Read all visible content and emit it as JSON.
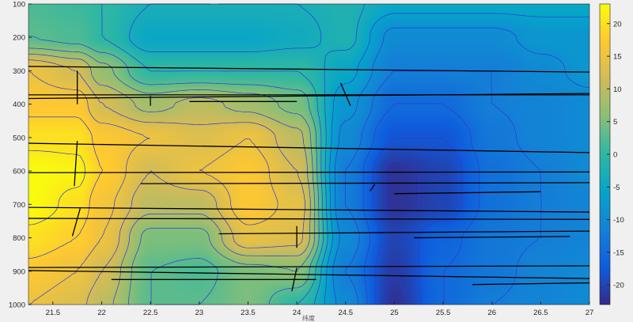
{
  "chart_data": {
    "type": "heatmap",
    "subtype": "filled contour with contour lines and overlaid line segments",
    "title": "",
    "xlabel": "纬度",
    "ylabel": "",
    "xlim": [
      21.25,
      27
    ],
    "ylim": [
      100,
      1000
    ],
    "y_reversed": true,
    "x_ticks": [
      21.5,
      22,
      22.5,
      23,
      23.5,
      24,
      24.5,
      25,
      25.5,
      26,
      26.5,
      27
    ],
    "y_ticks": [
      100,
      200,
      300,
      400,
      500,
      600,
      700,
      800,
      900,
      1000
    ],
    "colormap": "parula",
    "clim": [
      -23,
      23
    ],
    "colorbar": {
      "position": "right",
      "ticks": [
        -20,
        -15,
        -10,
        -5,
        0,
        5,
        10,
        15,
        20
      ]
    },
    "contour_color": "#2b3bd6",
    "contour_levels_step": 3,
    "grid_x": [
      21.25,
      21.75,
      22,
      22.5,
      23,
      23.5,
      24,
      24.5,
      25,
      25.5,
      26,
      26.5,
      27
    ],
    "grid_y": [
      100,
      200,
      300,
      400,
      500,
      600,
      700,
      800,
      900,
      1000
    ],
    "values": [
      [
        2,
        1,
        0,
        -3,
        -3,
        -3,
        -3,
        -2,
        -5,
        -5,
        -5,
        -5,
        -5
      ],
      [
        3,
        2,
        0,
        -5,
        -5,
        -5,
        -4,
        -2,
        -10,
        -10,
        -10,
        -8,
        -8
      ],
      [
        15,
        12,
        7,
        0,
        0,
        0,
        0,
        -5,
        -12,
        -12,
        -12,
        -10,
        -8
      ],
      [
        17,
        17,
        12,
        8,
        10,
        8,
        5,
        -8,
        -15,
        -15,
        -12,
        -11,
        -10
      ],
      [
        20,
        20,
        17,
        15,
        13,
        15,
        10,
        -10,
        -18,
        -18,
        -13,
        -11,
        -10
      ],
      [
        23,
        22,
        18,
        12,
        15,
        17,
        12,
        -12,
        -22,
        -20,
        -14,
        -12,
        -10
      ],
      [
        23,
        20,
        16,
        10,
        10,
        17,
        14,
        -12,
        -22,
        -20,
        -14,
        -12,
        -11
      ],
      [
        20,
        18,
        15,
        5,
        5,
        14,
        13,
        -10,
        -20,
        -16,
        -13,
        -12,
        -11
      ],
      [
        17,
        15,
        12,
        3,
        2,
        5,
        6,
        -12,
        -21,
        -15,
        -13,
        -11,
        -10
      ],
      [
        15,
        13,
        10,
        3,
        3,
        5,
        0,
        -10,
        -22,
        -15,
        -12,
        -11,
        -10
      ]
    ],
    "overlay_color": "#000000",
    "overlay_segments": [
      [
        [
          21.25,
          287
        ],
        [
          27,
          304
        ]
      ],
      [
        [
          21.25,
          372
        ],
        [
          27,
          372
        ]
      ],
      [
        [
          21.25,
          383
        ],
        [
          27,
          368
        ]
      ],
      [
        [
          21.25,
          517
        ],
        [
          27,
          545
        ]
      ],
      [
        [
          21.25,
          605
        ],
        [
          27,
          603
        ]
      ],
      [
        [
          21.25,
          709
        ],
        [
          27,
          723
        ]
      ],
      [
        [
          21.25,
          742
        ],
        [
          27,
          745
        ]
      ],
      [
        [
          21.25,
          889
        ],
        [
          27,
          884
        ]
      ],
      [
        [
          21.25,
          898
        ],
        [
          27,
          922
        ]
      ],
      [
        [
          22.4,
          638
        ],
        [
          27,
          635
        ]
      ],
      [
        [
          23.2,
          788
        ],
        [
          27,
          780
        ]
      ],
      [
        [
          22.1,
          925
        ],
        [
          24.2,
          925
        ]
      ],
      [
        [
          22.9,
          392
        ],
        [
          24.0,
          392
        ]
      ],
      [
        [
          25.0,
          668
        ],
        [
          26.5,
          662
        ]
      ],
      [
        [
          25.2,
          800
        ],
        [
          26.8,
          796
        ]
      ],
      [
        [
          25.8,
          940
        ],
        [
          27,
          935
        ]
      ],
      [
        [
          21.75,
          300
        ],
        [
          21.75,
          400
        ]
      ],
      [
        [
          21.75,
          510
        ],
        [
          21.72,
          645
        ]
      ],
      [
        [
          21.78,
          712
        ],
        [
          21.7,
          795
        ]
      ],
      [
        [
          24.0,
          765
        ],
        [
          24.0,
          830
        ]
      ],
      [
        [
          24.45,
          337
        ],
        [
          24.55,
          405
        ]
      ],
      [
        [
          22.5,
          375
        ],
        [
          22.5,
          405
        ]
      ],
      [
        [
          24.0,
          890
        ],
        [
          23.95,
          960
        ]
      ],
      [
        [
          24.8,
          640
        ],
        [
          24.75,
          660
        ]
      ]
    ]
  }
}
